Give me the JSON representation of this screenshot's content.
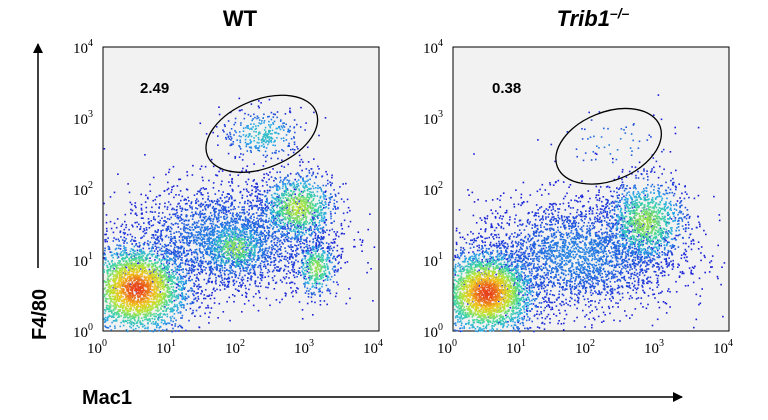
{
  "chart_data": {
    "type": "scatter",
    "subtype": "flow-cytometry-density-dot-plot",
    "xlabel": "Mac1",
    "ylabel": "F4/80",
    "x_scale": "log10",
    "y_scale": "log10",
    "xlim": [
      1,
      10000
    ],
    "ylim": [
      1,
      10000
    ],
    "x_ticks": [
      {
        "base": "10",
        "exp": "0",
        "value": 1
      },
      {
        "base": "10",
        "exp": "1",
        "value": 10
      },
      {
        "base": "10",
        "exp": "2",
        "value": 100
      },
      {
        "base": "10",
        "exp": "3",
        "value": 1000
      },
      {
        "base": "10",
        "exp": "4",
        "value": 10000
      }
    ],
    "y_ticks": [
      {
        "base": "10",
        "exp": "0",
        "value": 1
      },
      {
        "base": "10",
        "exp": "1",
        "value": 10
      },
      {
        "base": "10",
        "exp": "2",
        "value": 100
      },
      {
        "base": "10",
        "exp": "3",
        "value": 1000
      },
      {
        "base": "10",
        "exp": "4",
        "value": 10000
      }
    ],
    "color_scale": [
      "#1a1ad6",
      "#2aa8e8",
      "#3cd6a0",
      "#b6e632",
      "#f2c21c",
      "#e8401a"
    ],
    "panels": [
      {
        "title": "WT",
        "title_italic": false,
        "title_suffix": "",
        "gate": {
          "label": "2.49",
          "percent": 2.49,
          "center": [
            200,
            600
          ],
          "radius_log10": [
            0.85,
            0.48
          ],
          "tilt_deg": -22
        },
        "populations": [
          {
            "name": "main",
            "center": [
              3,
              4
            ],
            "spread_log10": [
              0.38,
              0.32
            ],
            "n": 2600,
            "peak": 1.0
          },
          {
            "name": "mac1-mid",
            "center": [
              80,
              15
            ],
            "spread_log10": [
              0.25,
              0.2
            ],
            "n": 500,
            "peak": 0.55
          },
          {
            "name": "mac1-high-f4/80-mid",
            "center": [
              650,
              55
            ],
            "spread_log10": [
              0.28,
              0.25
            ],
            "n": 900,
            "peak": 0.6
          },
          {
            "name": "mac1-high-f4/80-low",
            "center": [
              1200,
              8
            ],
            "spread_log10": [
              0.15,
              0.2
            ],
            "n": 380,
            "peak": 0.55
          },
          {
            "name": "gated-f4/80-high",
            "center": [
              200,
              600
            ],
            "spread_log10": [
              0.3,
              0.18
            ],
            "n": 320,
            "peak": 0.3
          },
          {
            "name": "diffuse-band",
            "center": [
              60,
              20
            ],
            "spread_log10": [
              0.75,
              0.4
            ],
            "n": 2600,
            "peak": 0.15
          }
        ]
      },
      {
        "title": "Trib1",
        "title_italic": true,
        "title_suffix": "–/–",
        "gate": {
          "label": "0.38",
          "percent": 0.38,
          "center": [
            180,
            400
          ],
          "radius_log10": [
            0.8,
            0.48
          ],
          "tilt_deg": -22
        },
        "populations": [
          {
            "name": "main",
            "center": [
              3,
              3.5
            ],
            "spread_log10": [
              0.35,
              0.3
            ],
            "n": 2600,
            "peak": 1.0
          },
          {
            "name": "mac1-high",
            "center": [
              600,
              35
            ],
            "spread_log10": [
              0.3,
              0.3
            ],
            "n": 1100,
            "peak": 0.55
          },
          {
            "name": "gated-f4/80-high",
            "center": [
              200,
              450
            ],
            "spread_log10": [
              0.45,
              0.25
            ],
            "n": 60,
            "peak": 0.15
          },
          {
            "name": "diffuse-band",
            "center": [
              60,
              12
            ],
            "spread_log10": [
              0.75,
              0.4
            ],
            "n": 2800,
            "peak": 0.15
          }
        ]
      }
    ]
  }
}
